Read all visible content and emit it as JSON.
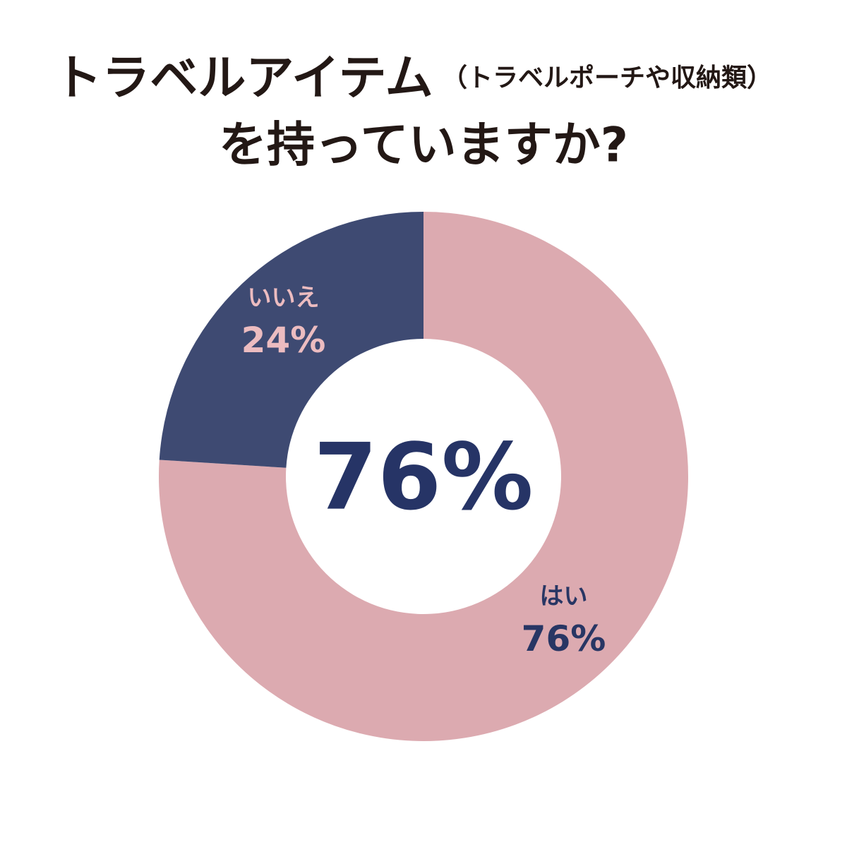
{
  "chart_data": {
    "type": "donut",
    "title_lines": [
      "トラベルアイテム",
      "（トラベルポーチや収納類）",
      "を持っていますか?"
    ],
    "categories": [
      "はい",
      "いいえ"
    ],
    "values": [
      76,
      24
    ],
    "value_labels": [
      "76%",
      "24%"
    ],
    "colors": [
      "#dcaab0",
      "#3e4a72"
    ],
    "label_colors": [
      "#283664",
      "#ecbcc0"
    ],
    "center_label": "76%"
  }
}
